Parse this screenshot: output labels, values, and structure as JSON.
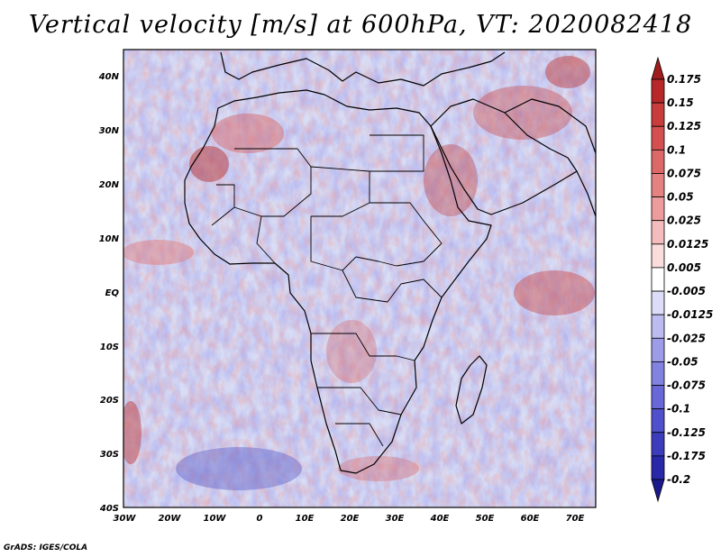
{
  "title": "Vertical velocity [m/s] at 600hPa, VT: 2020082418",
  "credit": "GrADS: IGES/COLA",
  "map": {
    "lat_range": [
      -40,
      45
    ],
    "lon_range": [
      -30,
      75
    ],
    "lat_labels": [
      "40N",
      "30N",
      "20N",
      "10N",
      "EQ",
      "10S",
      "20S",
      "30S",
      "40S"
    ],
    "lon_labels": [
      "30W",
      "20W",
      "10W",
      "0",
      "10E",
      "20E",
      "30E",
      "40E",
      "50E",
      "60E",
      "70E"
    ],
    "field_background": "#d8dcf4"
  },
  "colorbar": {
    "levels": [
      "0.175",
      "0.15",
      "0.125",
      "0.1",
      "0.075",
      "0.05",
      "0.025",
      "0.0125",
      "0.005",
      "-0.005",
      "-0.0125",
      "-0.025",
      "-0.05",
      "-0.075",
      "-0.1",
      "-0.125",
      "-0.175",
      "-0.2"
    ],
    "colors": [
      "#a01c1c",
      "#b82828",
      "#c83c3c",
      "#d45050",
      "#dc6868",
      "#e48282",
      "#ec9c9c",
      "#f4bcbc",
      "#fadcdc",
      "#ffffff",
      "#dcdcf8",
      "#bcbcf0",
      "#9c9ce8",
      "#8282e0",
      "#6868d8",
      "#5050cc",
      "#3c3cbc",
      "#2828a8",
      "#1a1a8c"
    ]
  }
}
